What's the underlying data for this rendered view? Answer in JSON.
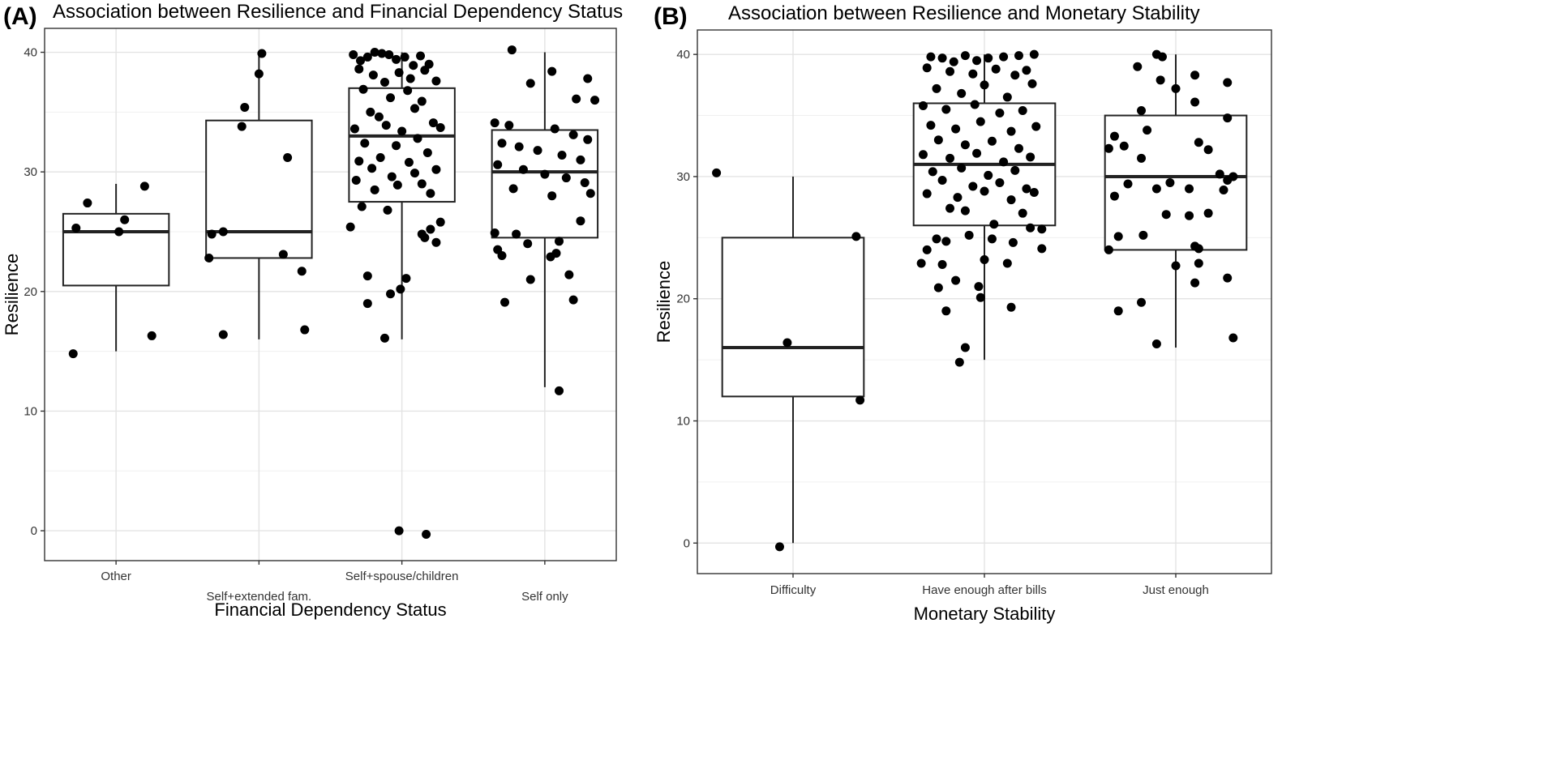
{
  "chart_data": [
    {
      "type": "boxplot",
      "panel_label": "(A)",
      "title": "Association between Resilience and Financial Dependency Status",
      "xlabel": "Financial Dependency Status",
      "ylabel": "Resilience",
      "ylim": [
        -2.5,
        42
      ],
      "yticks": [
        0,
        10,
        20,
        30,
        40
      ],
      "grid": true,
      "categories": [
        "Other",
        "Self+extended fam.",
        "Self+spouse/children",
        "Self only"
      ],
      "boxes": [
        {
          "whisker_low": 15,
          "q1": 20.5,
          "median": 25,
          "q3": 26.5,
          "whisker_high": 29
        },
        {
          "whisker_low": 16,
          "q1": 22.8,
          "median": 25,
          "q3": 34.3,
          "whisker_high": 40
        },
        {
          "whisker_low": 16,
          "q1": 27.5,
          "median": 33,
          "q3": 37,
          "whisker_high": 40
        },
        {
          "whisker_low": 12,
          "q1": 24.5,
          "median": 30,
          "q3": 33.5,
          "whisker_high": 40
        }
      ],
      "points": [
        [
          [
            -0.2,
            27.4
          ],
          [
            -0.28,
            25.3
          ],
          [
            0.06,
            26
          ],
          [
            0.02,
            25
          ],
          [
            0.2,
            28.8
          ],
          [
            0.25,
            16.3
          ],
          [
            -0.3,
            14.8
          ]
        ],
        [
          [
            -0.1,
            35.4
          ],
          [
            -0.12,
            33.8
          ],
          [
            0.0,
            38.2
          ],
          [
            0.02,
            39.9
          ],
          [
            0.2,
            31.2
          ],
          [
            -0.25,
            25
          ],
          [
            -0.33,
            24.8
          ],
          [
            -0.35,
            22.8
          ],
          [
            0.17,
            23.1
          ],
          [
            0.3,
            21.7
          ],
          [
            -0.25,
            16.4
          ],
          [
            0.32,
            16.8
          ]
        ],
        [
          [
            -0.34,
            39.8
          ],
          [
            -0.29,
            39.3
          ],
          [
            -0.24,
            39.6
          ],
          [
            -0.19,
            40.0
          ],
          [
            -0.14,
            39.9
          ],
          [
            -0.09,
            39.8
          ],
          [
            -0.04,
            39.4
          ],
          [
            0.02,
            39.6
          ],
          [
            0.08,
            38.9
          ],
          [
            0.13,
            39.7
          ],
          [
            0.19,
            39.0
          ],
          [
            -0.3,
            38.6
          ],
          [
            -0.2,
            38.1
          ],
          [
            -0.12,
            37.5
          ],
          [
            -0.02,
            38.3
          ],
          [
            0.06,
            37.8
          ],
          [
            0.16,
            38.5
          ],
          [
            0.24,
            37.6
          ],
          [
            -0.27,
            36.9
          ],
          [
            -0.08,
            36.2
          ],
          [
            0.04,
            36.8
          ],
          [
            0.14,
            35.9
          ],
          [
            -0.22,
            35.0
          ],
          [
            -0.16,
            34.6
          ],
          [
            0.09,
            35.3
          ],
          [
            0.22,
            34.1
          ],
          [
            -0.33,
            33.6
          ],
          [
            -0.11,
            33.9
          ],
          [
            0.0,
            33.4
          ],
          [
            0.11,
            32.8
          ],
          [
            0.27,
            33.7
          ],
          [
            -0.26,
            32.4
          ],
          [
            -0.04,
            32.2
          ],
          [
            0.18,
            31.6
          ],
          [
            -0.3,
            30.9
          ],
          [
            -0.15,
            31.2
          ],
          [
            0.05,
            30.8
          ],
          [
            -0.21,
            30.3
          ],
          [
            0.09,
            29.9
          ],
          [
            0.24,
            30.2
          ],
          [
            -0.32,
            29.3
          ],
          [
            -0.07,
            29.6
          ],
          [
            0.14,
            29.0
          ],
          [
            -0.19,
            28.5
          ],
          [
            -0.03,
            28.9
          ],
          [
            0.2,
            28.2
          ],
          [
            -0.28,
            27.1
          ],
          [
            -0.1,
            26.8
          ],
          [
            0.27,
            25.8
          ],
          [
            0.2,
            25.2
          ],
          [
            0.16,
            24.5
          ],
          [
            0.24,
            24.1
          ],
          [
            0.14,
            24.8
          ],
          [
            -0.36,
            25.4
          ],
          [
            -0.24,
            21.3
          ],
          [
            0.03,
            21.1
          ],
          [
            -0.01,
            20.2
          ],
          [
            -0.08,
            19.8
          ],
          [
            -0.24,
            19.0
          ],
          [
            -0.12,
            16.1
          ],
          [
            -0.02,
            0.0
          ],
          [
            0.17,
            -0.3
          ]
        ],
        [
          [
            -0.23,
            40.2
          ],
          [
            0.05,
            38.4
          ],
          [
            0.3,
            37.8
          ],
          [
            -0.1,
            37.4
          ],
          [
            0.35,
            36.0
          ],
          [
            0.22,
            36.1
          ],
          [
            -0.35,
            34.1
          ],
          [
            -0.25,
            33.9
          ],
          [
            0.07,
            33.6
          ],
          [
            0.2,
            33.1
          ],
          [
            0.3,
            32.7
          ],
          [
            -0.3,
            32.4
          ],
          [
            -0.18,
            32.1
          ],
          [
            -0.05,
            31.8
          ],
          [
            0.12,
            31.4
          ],
          [
            0.25,
            31.0
          ],
          [
            -0.33,
            30.6
          ],
          [
            -0.15,
            30.2
          ],
          [
            0.0,
            29.8
          ],
          [
            0.15,
            29.5
          ],
          [
            0.28,
            29.1
          ],
          [
            -0.22,
            28.6
          ],
          [
            0.32,
            28.2
          ],
          [
            0.05,
            28.0
          ],
          [
            0.25,
            25.9
          ],
          [
            -0.35,
            24.9
          ],
          [
            -0.2,
            24.8
          ],
          [
            -0.12,
            24.0
          ],
          [
            0.1,
            24.2
          ],
          [
            -0.33,
            23.5
          ],
          [
            -0.3,
            23.0
          ],
          [
            0.08,
            23.2
          ],
          [
            0.04,
            22.9
          ],
          [
            -0.1,
            21.0
          ],
          [
            0.17,
            21.4
          ],
          [
            -0.28,
            19.1
          ],
          [
            0.2,
            19.3
          ],
          [
            0.1,
            11.7
          ]
        ]
      ]
    },
    {
      "type": "boxplot",
      "panel_label": "(B)",
      "title": "Association between Resilience and Monetary Stability",
      "xlabel": "Monetary Stability",
      "ylabel": "Resilience",
      "ylim": [
        -2.5,
        42
      ],
      "yticks": [
        0,
        10,
        20,
        30,
        40
      ],
      "grid": true,
      "categories": [
        "Difficulty",
        "Have enough after bills",
        "Just enough"
      ],
      "boxes": [
        {
          "whisker_low": 0,
          "q1": 12,
          "median": 16,
          "q3": 25,
          "whisker_high": 30
        },
        {
          "whisker_low": 15,
          "q1": 26,
          "median": 31,
          "q3": 36,
          "whisker_high": 40
        },
        {
          "whisker_low": 16,
          "q1": 24,
          "median": 30,
          "q3": 35,
          "whisker_high": 40
        }
      ],
      "points": [
        [
          [
            -0.4,
            30.3
          ],
          [
            0.33,
            25.1
          ],
          [
            -0.03,
            16.4
          ],
          [
            0.35,
            11.7
          ],
          [
            -0.07,
            -0.3
          ]
        ],
        [
          [
            -0.28,
            39.8
          ],
          [
            -0.22,
            39.7
          ],
          [
            -0.16,
            39.4
          ],
          [
            -0.1,
            39.9
          ],
          [
            -0.04,
            39.5
          ],
          [
            0.02,
            39.7
          ],
          [
            0.1,
            39.8
          ],
          [
            0.18,
            39.9
          ],
          [
            0.26,
            40.0
          ],
          [
            -0.3,
            38.9
          ],
          [
            -0.18,
            38.6
          ],
          [
            -0.06,
            38.4
          ],
          [
            0.06,
            38.8
          ],
          [
            0.16,
            38.3
          ],
          [
            0.22,
            38.7
          ],
          [
            -0.25,
            37.2
          ],
          [
            -0.12,
            36.8
          ],
          [
            0.0,
            37.5
          ],
          [
            0.12,
            36.5
          ],
          [
            0.25,
            37.6
          ],
          [
            -0.32,
            35.8
          ],
          [
            -0.2,
            35.5
          ],
          [
            -0.05,
            35.9
          ],
          [
            0.08,
            35.2
          ],
          [
            0.2,
            35.4
          ],
          [
            -0.28,
            34.2
          ],
          [
            -0.15,
            33.9
          ],
          [
            -0.02,
            34.5
          ],
          [
            0.14,
            33.7
          ],
          [
            0.27,
            34.1
          ],
          [
            -0.24,
            33.0
          ],
          [
            -0.1,
            32.6
          ],
          [
            0.04,
            32.9
          ],
          [
            0.18,
            32.3
          ],
          [
            -0.32,
            31.8
          ],
          [
            -0.18,
            31.5
          ],
          [
            -0.04,
            31.9
          ],
          [
            0.1,
            31.2
          ],
          [
            0.24,
            31.6
          ],
          [
            -0.27,
            30.4
          ],
          [
            -0.12,
            30.7
          ],
          [
            0.02,
            30.1
          ],
          [
            0.16,
            30.5
          ],
          [
            -0.22,
            29.7
          ],
          [
            -0.06,
            29.2
          ],
          [
            0.08,
            29.5
          ],
          [
            0.22,
            29.0
          ],
          [
            -0.3,
            28.6
          ],
          [
            -0.14,
            28.3
          ],
          [
            0.0,
            28.8
          ],
          [
            0.14,
            28.1
          ],
          [
            0.26,
            28.7
          ],
          [
            -0.18,
            27.4
          ],
          [
            -0.1,
            27.2
          ],
          [
            0.2,
            27.0
          ],
          [
            0.05,
            26.1
          ],
          [
            0.24,
            25.8
          ],
          [
            0.3,
            25.7
          ],
          [
            -0.25,
            24.9
          ],
          [
            -0.2,
            24.7
          ],
          [
            -0.08,
            25.2
          ],
          [
            0.04,
            24.9
          ],
          [
            0.15,
            24.6
          ],
          [
            0.3,
            24.1
          ],
          [
            -0.3,
            24.0
          ],
          [
            0.0,
            23.2
          ],
          [
            -0.33,
            22.9
          ],
          [
            -0.22,
            22.8
          ],
          [
            0.12,
            22.9
          ],
          [
            -0.15,
            21.5
          ],
          [
            -0.24,
            20.9
          ],
          [
            -0.03,
            21.0
          ],
          [
            -0.2,
            19.0
          ],
          [
            -0.02,
            20.1
          ],
          [
            0.14,
            19.3
          ],
          [
            -0.1,
            16.0
          ],
          [
            -0.13,
            14.8
          ]
        ],
        [
          [
            -0.1,
            40.0
          ],
          [
            -0.07,
            39.8
          ],
          [
            -0.2,
            39.0
          ],
          [
            0.1,
            38.3
          ],
          [
            0.27,
            37.7
          ],
          [
            -0.08,
            37.9
          ],
          [
            0.0,
            37.2
          ],
          [
            0.1,
            36.1
          ],
          [
            -0.18,
            35.4
          ],
          [
            0.27,
            34.8
          ],
          [
            -0.15,
            33.8
          ],
          [
            -0.32,
            33.3
          ],
          [
            -0.27,
            32.5
          ],
          [
            0.12,
            32.8
          ],
          [
            -0.35,
            32.3
          ],
          [
            0.17,
            32.2
          ],
          [
            -0.18,
            31.5
          ],
          [
            0.23,
            30.2
          ],
          [
            0.3,
            30.0
          ],
          [
            0.27,
            29.7
          ],
          [
            -0.03,
            29.5
          ],
          [
            -0.25,
            29.4
          ],
          [
            -0.1,
            29.0
          ],
          [
            0.07,
            29.0
          ],
          [
            0.25,
            28.9
          ],
          [
            -0.32,
            28.4
          ],
          [
            0.17,
            27.0
          ],
          [
            -0.05,
            26.9
          ],
          [
            0.07,
            26.8
          ],
          [
            -0.3,
            25.1
          ],
          [
            -0.17,
            25.2
          ],
          [
            -0.35,
            24.0
          ],
          [
            0.1,
            24.3
          ],
          [
            0.12,
            24.1
          ],
          [
            0.12,
            22.9
          ],
          [
            0.0,
            22.7
          ],
          [
            0.1,
            21.3
          ],
          [
            0.27,
            21.7
          ],
          [
            -0.18,
            19.7
          ],
          [
            -0.3,
            19.0
          ],
          [
            -0.1,
            16.3
          ],
          [
            0.3,
            16.8
          ]
        ]
      ]
    }
  ]
}
